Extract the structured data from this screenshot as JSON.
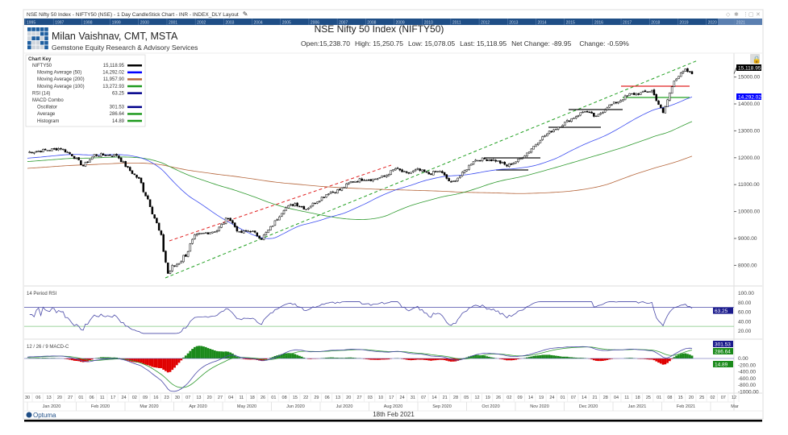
{
  "window": {
    "title": "NSE Nifty 50 Index - NIFTY50 (NSE) - 1 Day CandleStick Chart - INR - INDEX_DLY Layout",
    "icons": [
      "diamond-icon",
      "pin-icon",
      "more-icon",
      "restore-icon",
      "close-icon"
    ]
  },
  "year_strip": [
    "1995",
    "1997",
    "1998",
    "1999",
    "2000",
    "2001",
    "2002",
    "2003",
    "2004",
    "2005",
    "2006",
    "2007",
    "2008",
    "2009",
    "2010",
    "2011",
    "2012",
    "2013",
    "2014",
    "2015",
    "2016",
    "2017",
    "2018",
    "2019",
    "2020",
    "2021"
  ],
  "header": {
    "author": "Milan Vaishnav, CMT, MSTA",
    "company": "Gemstone Equity Research & Advisory Services",
    "chart_title": "NSE Nifty 50 Index (NIFTY50)",
    "open": "Open:15,238.70",
    "high": "High: 15,250.75",
    "low": "Low: 15,078.05",
    "last": "Last: 15,118.95",
    "net_change": "Net Change: -89.95",
    "change": "Change: -0.59%"
  },
  "chart_key": {
    "title": "Chart Key",
    "items": [
      {
        "label": "NIFTY50",
        "value": "15,118.95",
        "color": "#000000",
        "indent": 1
      },
      {
        "label": "Moving Average (50)",
        "value": "14,292.02",
        "color": "#0000ff",
        "indent": 2
      },
      {
        "label": "Moving Average (200)",
        "value": "11,957.90",
        "color": "#b5653a",
        "indent": 2
      },
      {
        "label": "Moving Average (100)",
        "value": "13,272.93",
        "color": "#1e9a1e",
        "indent": 2
      },
      {
        "label": "RSI (14)",
        "value": "63.25",
        "color": "#00008b",
        "indent": 1
      },
      {
        "label": "MACD Combo",
        "value": "",
        "color": "",
        "indent": 1
      },
      {
        "label": "Oscillator",
        "value": "301.53",
        "color": "#00008b",
        "indent": 2
      },
      {
        "label": "Average",
        "value": "286.64",
        "color": "#1e9a1e",
        "indent": 2
      },
      {
        "label": "Histogram",
        "value": "14.89",
        "color": "#1e9a1e",
        "indent": 2
      }
    ]
  },
  "price_axis": {
    "ticks": [
      "15000.00",
      "14000.00",
      "13000.00",
      "12000.00",
      "11000.00",
      "10000.00",
      "9000.00",
      "8000.00"
    ],
    "last_label": "15,118.95",
    "ma50_label": "14,292.02"
  },
  "rsi_panel": {
    "title": "14 Period RSI",
    "ticks": [
      "100.00",
      "80.00",
      "60.00",
      "40.00",
      "20.00"
    ],
    "value_label": "63.25"
  },
  "macd_panel": {
    "title": "12 / 26 / 9 MACD-C",
    "ticks": [
      "0.00",
      "-200.00",
      "-400.00",
      "-600.00",
      "-800.00",
      "-1000.00"
    ],
    "osc_label": "301.53",
    "avg_label": "286.64",
    "hist_label": "14.89"
  },
  "date_axis": {
    "days": [
      "30",
      "06",
      "13",
      "20",
      "27",
      "01",
      "06",
      "11",
      "17",
      "24",
      "02",
      "09",
      "16",
      "23",
      "30",
      "07",
      "13",
      "20",
      "27",
      "04",
      "11",
      "18",
      "26",
      "01",
      "08",
      "15",
      "22",
      "29",
      "06",
      "13",
      "20",
      "27",
      "03",
      "10",
      "17",
      "24",
      "31",
      "07",
      "14",
      "21",
      "28",
      "05",
      "12",
      "19",
      "26",
      "02",
      "09",
      "14",
      "19",
      "24",
      "01",
      "07",
      "14",
      "21",
      "28",
      "04",
      "11",
      "18",
      "25",
      "01",
      "08",
      "15",
      "20",
      "25",
      "02",
      "07",
      "12"
    ],
    "months": [
      "Jan 2020",
      "Feb 2020",
      "Mar 2020",
      "Apr 2020",
      "May 2020",
      "Jun 2020",
      "Jul 2020",
      "Aug 2020",
      "Sep 2020",
      "Oct 2020",
      "Nov 2020",
      "Dec 2020",
      "Jan 2021",
      "Feb 2021",
      "Mar"
    ]
  },
  "footer": {
    "brand": "Optuma",
    "date": "18th Feb 2021"
  },
  "colors": {
    "strip": "#1f4e86",
    "ma50": "#3b4cf0",
    "ma100": "#2e9a2e",
    "ma200": "#b5653a",
    "rsi": "#4a4aa8",
    "up": "#1b8a1b",
    "down": "#e00000"
  },
  "chart_data": {
    "type": "candlestick",
    "title": "NSE Nifty 50 Index (NIFTY50)",
    "ylim": [
      7500,
      15700
    ],
    "weekly_close": [
      [
        0,
        12200
      ],
      [
        3,
        12350
      ],
      [
        4,
        12100
      ],
      [
        5,
        11700
      ],
      [
        6,
        12100
      ],
      [
        8,
        12100
      ],
      [
        9,
        11600
      ],
      [
        10,
        11200
      ],
      [
        11,
        10300
      ],
      [
        12,
        9000
      ],
      [
        12.6,
        7700
      ],
      [
        13,
        7900
      ],
      [
        14,
        8300
      ],
      [
        15,
        9000
      ],
      [
        16,
        9200
      ],
      [
        17,
        9300
      ],
      [
        18,
        9800
      ],
      [
        19,
        9200
      ],
      [
        20,
        9300
      ],
      [
        21,
        9000
      ],
      [
        22,
        9500
      ],
      [
        23,
        10100
      ],
      [
        24,
        10300
      ],
      [
        25,
        10100
      ],
      [
        26,
        10400
      ],
      [
        27,
        10700
      ],
      [
        28,
        10800
      ],
      [
        29,
        11100
      ],
      [
        30,
        11200
      ],
      [
        31,
        11200
      ],
      [
        32,
        11300
      ],
      [
        33,
        11600
      ],
      [
        34,
        11400
      ],
      [
        35,
        11550
      ],
      [
        36,
        11400
      ],
      [
        37,
        11500
      ],
      [
        38,
        11050
      ],
      [
        39,
        11400
      ],
      [
        40,
        11900
      ],
      [
        41,
        11950
      ],
      [
        42,
        11900
      ],
      [
        43,
        11700
      ],
      [
        44,
        11900
      ],
      [
        45,
        12250
      ],
      [
        46,
        12700
      ],
      [
        47,
        13000
      ],
      [
        48,
        13250
      ],
      [
        49,
        13500
      ],
      [
        50,
        13750
      ],
      [
        51,
        13500
      ],
      [
        52,
        13900
      ],
      [
        53,
        14100
      ],
      [
        54,
        14350
      ],
      [
        55,
        14400
      ],
      [
        56,
        14500
      ],
      [
        57,
        13650
      ],
      [
        58,
        14900
      ],
      [
        59,
        15250
      ],
      [
        59.6,
        15119
      ]
    ]
  }
}
